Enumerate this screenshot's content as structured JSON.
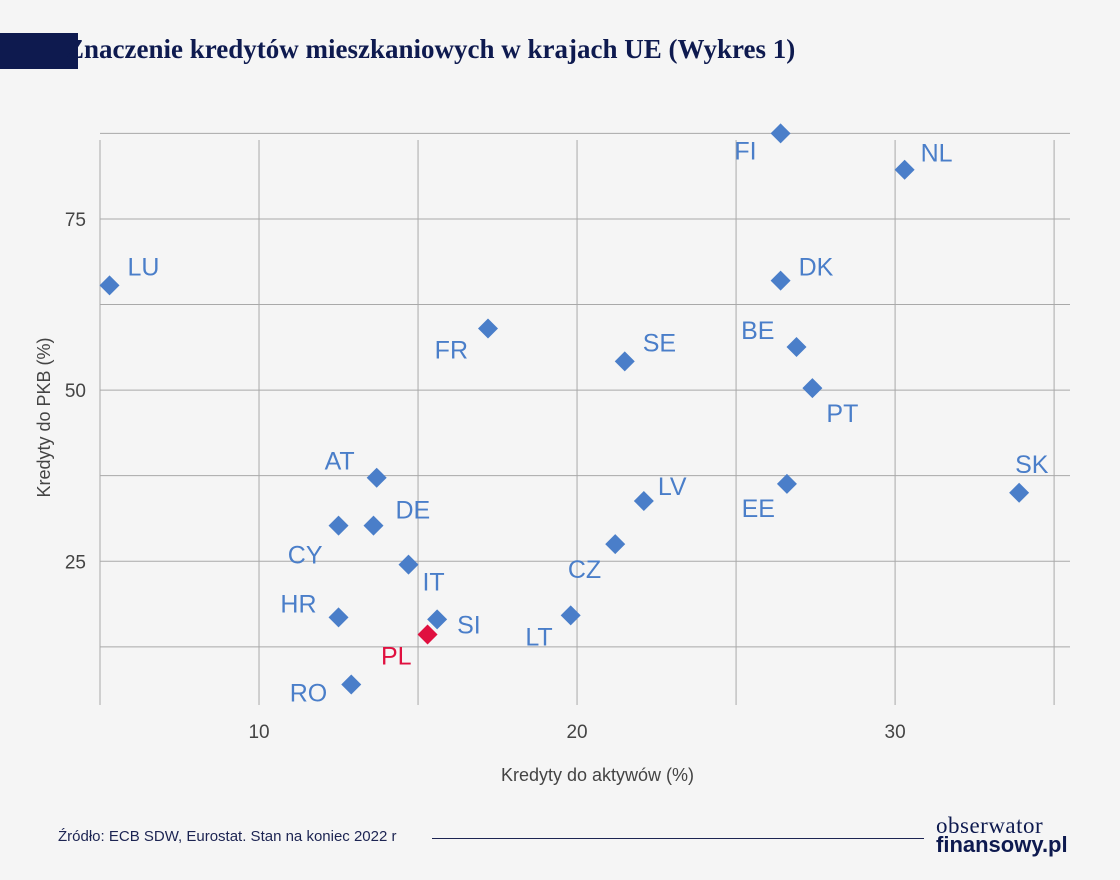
{
  "header": {
    "title": "Znaczenie kredytów mieszkaniowych w krajach UE (Wykres 1)"
  },
  "footer": {
    "source": "Źródło: ECB SDW, Eurostat. Stan na koniec 2022 r",
    "logo_line1": "obserwator",
    "logo_line2": "finansowy.pl"
  },
  "colors": {
    "points": "#4a7ec9",
    "highlight": "#e0103f",
    "grid": "#a9a9a9",
    "axis_text": "#444444",
    "title": "#0e1a4f"
  },
  "chart_data": {
    "type": "scatter",
    "title": "Znaczenie kredytów mieszkaniowych w krajach UE (Wykres 1)",
    "xlabel": "Kredyty do aktywów (%)",
    "ylabel": "Kredyty do PKB (%)",
    "xlim": [
      5,
      35.5
    ],
    "ylim": [
      4,
      88
    ],
    "xticks": [
      10,
      20,
      30
    ],
    "yticks": [
      25,
      50,
      75
    ],
    "grid": true,
    "points": [
      {
        "label": "LU",
        "x": 5.3,
        "y": 65.3
      },
      {
        "label": "FI",
        "x": 26.4,
        "y": 87.5
      },
      {
        "label": "NL",
        "x": 30.3,
        "y": 82.2
      },
      {
        "label": "DK",
        "x": 26.4,
        "y": 66.0
      },
      {
        "label": "FR",
        "x": 17.2,
        "y": 59.0
      },
      {
        "label": "SE",
        "x": 21.5,
        "y": 54.2
      },
      {
        "label": "BE",
        "x": 26.9,
        "y": 56.3
      },
      {
        "label": "PT",
        "x": 27.4,
        "y": 50.3
      },
      {
        "label": "SK",
        "x": 33.9,
        "y": 35.0
      },
      {
        "label": "AT",
        "x": 13.7,
        "y": 37.2
      },
      {
        "label": "DE",
        "x": 13.6,
        "y": 30.2
      },
      {
        "label": "CY",
        "x": 12.5,
        "y": 30.2
      },
      {
        "label": "LV",
        "x": 22.1,
        "y": 33.8
      },
      {
        "label": "EE",
        "x": 26.6,
        "y": 36.3
      },
      {
        "label": "CZ",
        "x": 21.2,
        "y": 27.5
      },
      {
        "label": "IT",
        "x": 14.7,
        "y": 24.5
      },
      {
        "label": "HR",
        "x": 12.5,
        "y": 16.8
      },
      {
        "label": "SI",
        "x": 15.6,
        "y": 16.5
      },
      {
        "label": "LT",
        "x": 19.8,
        "y": 17.1
      },
      {
        "label": "PL",
        "x": 15.3,
        "y": 14.3,
        "highlight": true
      },
      {
        "label": "RO",
        "x": 12.9,
        "y": 7.0
      }
    ]
  }
}
